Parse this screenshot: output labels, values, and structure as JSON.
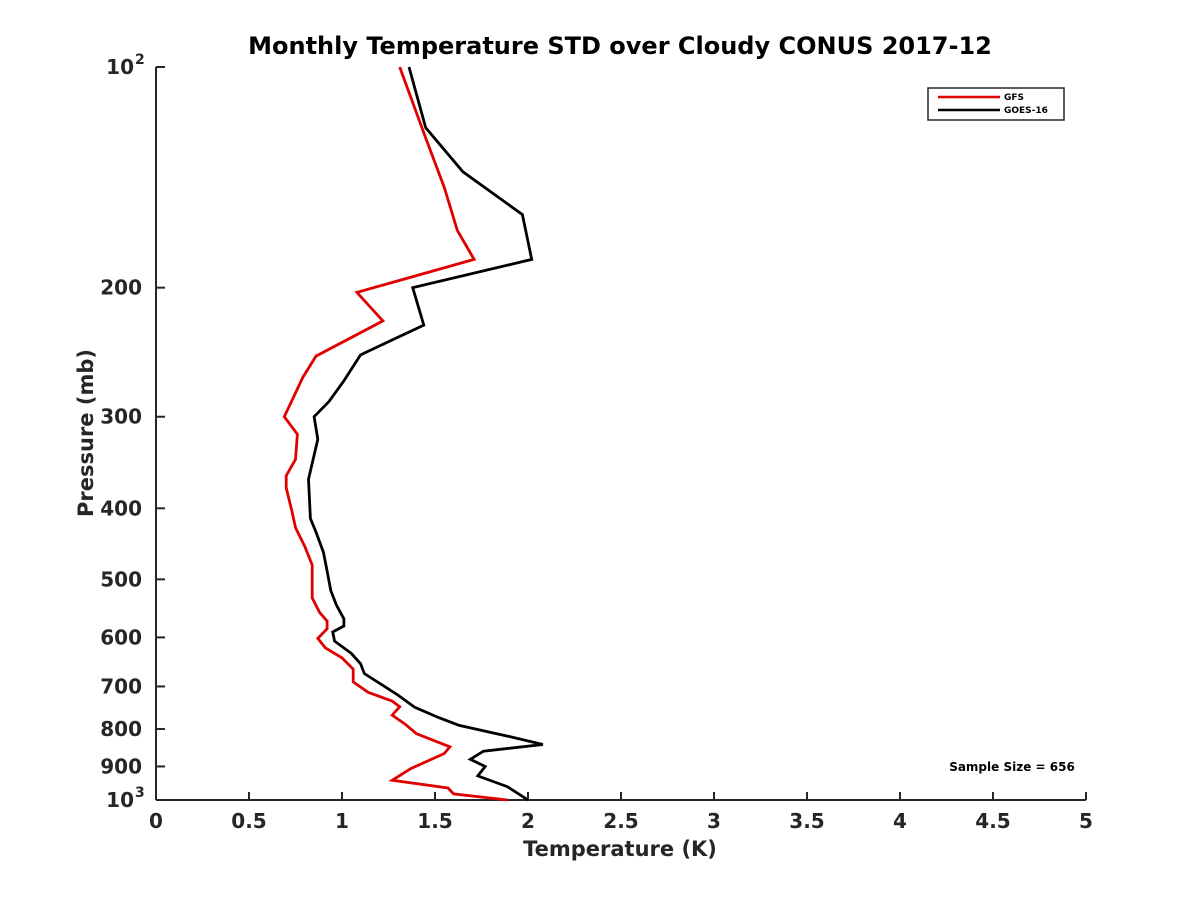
{
  "chart_data": {
    "type": "line",
    "title": "Monthly Temperature STD over Cloudy CONUS  2017-12",
    "xlabel": "Temperature (K)",
    "ylabel": "Pressure (mb)",
    "xlim": [
      0,
      5
    ],
    "ylim": [
      1000,
      100
    ],
    "yscale": "log",
    "grid": false,
    "legend_position": "top-right",
    "x_ticks": [
      {
        "value": 0,
        "label": "0"
      },
      {
        "value": 0.5,
        "label": "0.5"
      },
      {
        "value": 1,
        "label": "1"
      },
      {
        "value": 1.5,
        "label": "1.5"
      },
      {
        "value": 2,
        "label": "2"
      },
      {
        "value": 2.5,
        "label": "2.5"
      },
      {
        "value": 3,
        "label": "3"
      },
      {
        "value": 3.5,
        "label": "3.5"
      },
      {
        "value": 4,
        "label": "4"
      },
      {
        "value": 4.5,
        "label": "4.5"
      },
      {
        "value": 5,
        "label": "5"
      }
    ],
    "y_ticks": [
      {
        "value": 100,
        "base": "10",
        "exp": "2"
      },
      {
        "value": 200,
        "base": "200",
        "exp": ""
      },
      {
        "value": 300,
        "base": "300",
        "exp": ""
      },
      {
        "value": 400,
        "base": "400",
        "exp": ""
      },
      {
        "value": 500,
        "base": "500",
        "exp": ""
      },
      {
        "value": 600,
        "base": "600",
        "exp": ""
      },
      {
        "value": 700,
        "base": "700",
        "exp": ""
      },
      {
        "value": 800,
        "base": "800",
        "exp": ""
      },
      {
        "value": 900,
        "base": "900",
        "exp": ""
      },
      {
        "value": 1000,
        "base": "10",
        "exp": "3"
      }
    ],
    "series": [
      {
        "name": "GFS",
        "color": "#e00000",
        "points": [
          [
            1.31,
            100
          ],
          [
            1.45,
            125
          ],
          [
            1.55,
            146
          ],
          [
            1.62,
            167
          ],
          [
            1.71,
            183
          ],
          [
            1.08,
            203
          ],
          [
            1.22,
            222
          ],
          [
            0.86,
            248
          ],
          [
            0.79,
            265
          ],
          [
            0.69,
            300
          ],
          [
            0.76,
            317
          ],
          [
            0.75,
            343
          ],
          [
            0.7,
            361
          ],
          [
            0.7,
            375
          ],
          [
            0.73,
            403
          ],
          [
            0.75,
            425
          ],
          [
            0.8,
            451
          ],
          [
            0.84,
            478
          ],
          [
            0.84,
            530
          ],
          [
            0.88,
            555
          ],
          [
            0.92,
            570
          ],
          [
            0.92,
            584
          ],
          [
            0.87,
            602
          ],
          [
            0.91,
            620
          ],
          [
            1.0,
            640
          ],
          [
            1.06,
            663
          ],
          [
            1.06,
            690
          ],
          [
            1.14,
            713
          ],
          [
            1.27,
            733
          ],
          [
            1.31,
            746
          ],
          [
            1.27,
            766
          ],
          [
            1.34,
            788
          ],
          [
            1.4,
            812
          ],
          [
            1.58,
            846
          ],
          [
            1.55,
            864
          ],
          [
            1.37,
            906
          ],
          [
            1.27,
            940
          ],
          [
            1.57,
            963
          ],
          [
            1.6,
            981
          ],
          [
            1.89,
            1000
          ]
        ]
      },
      {
        "name": "GOES-16",
        "color": "#000000",
        "points": [
          [
            1.36,
            100
          ],
          [
            1.45,
            121
          ],
          [
            1.65,
            139
          ],
          [
            1.97,
            159
          ],
          [
            2.02,
            183
          ],
          [
            1.38,
            200
          ],
          [
            1.44,
            225
          ],
          [
            1.1,
            247
          ],
          [
            1.01,
            268
          ],
          [
            0.93,
            286
          ],
          [
            0.85,
            300
          ],
          [
            0.87,
            322
          ],
          [
            0.82,
            365
          ],
          [
            0.83,
            413
          ],
          [
            0.86,
            431
          ],
          [
            0.9,
            459
          ],
          [
            0.92,
            487
          ],
          [
            0.94,
            518
          ],
          [
            0.97,
            542
          ],
          [
            1.01,
            566
          ],
          [
            1.01,
            579
          ],
          [
            0.95,
            590
          ],
          [
            0.96,
            607
          ],
          [
            1.05,
            631
          ],
          [
            1.1,
            652
          ],
          [
            1.12,
            672
          ],
          [
            1.3,
            719
          ],
          [
            1.39,
            747
          ],
          [
            1.52,
            772
          ],
          [
            1.63,
            791
          ],
          [
            1.88,
            817
          ],
          [
            2.08,
            840
          ],
          [
            1.76,
            858
          ],
          [
            1.69,
            880
          ],
          [
            1.77,
            900
          ],
          [
            1.73,
            927
          ],
          [
            1.89,
            959
          ],
          [
            2.0,
            1000
          ]
        ]
      }
    ],
    "annotation": "Sample Size = 656"
  }
}
